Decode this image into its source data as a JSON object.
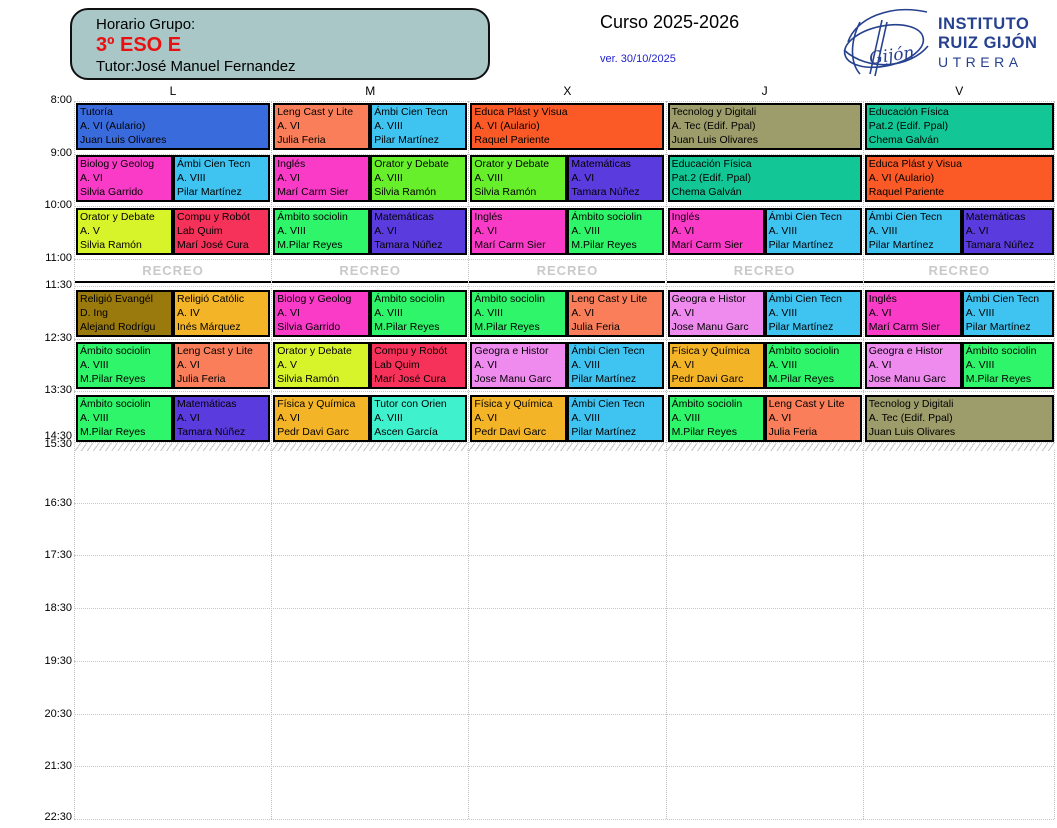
{
  "header": {
    "group_label": "Horario Grupo:",
    "group_name": "3º ESO E",
    "tutor": "Tutor:José Manuel Fernandez",
    "course": "Curso 2025-2026",
    "version": "ver. 30/10/2025",
    "logo": {
      "line1": "INSTITUTO",
      "line2": "RUIZ GIJÓN",
      "line3": "UTRERA",
      "script_word": "Gijón"
    },
    "colors": {
      "box_bg": "#A9C7C7",
      "group_red": "#E81010",
      "version_blue": "#2222CC",
      "logo_navy": "#26418F",
      "recreo_gray": "#C9C9C9"
    }
  },
  "grid": {
    "days": [
      {
        "label": "L"
      },
      {
        "label": "M"
      },
      {
        "label": "X"
      },
      {
        "label": "J"
      },
      {
        "label": "V"
      }
    ],
    "times": [
      {
        "label": "8:00"
      },
      {
        "label": "9:00"
      },
      {
        "label": "10:00"
      },
      {
        "label": "11:00"
      },
      {
        "label": "11:30"
      },
      {
        "label": "12:30"
      },
      {
        "label": "13:30"
      },
      {
        "label": "14:30"
      },
      {
        "label": "15:30"
      },
      {
        "label": "16:30"
      },
      {
        "label": "17:30"
      },
      {
        "label": "18:30"
      },
      {
        "label": "19:30"
      },
      {
        "label": "20:30"
      },
      {
        "label": "21:30"
      },
      {
        "label": "22:30"
      }
    ],
    "recreo_label": "RECREO",
    "rows": [
      {
        "time": "8:00",
        "cells": [
          {
            "day": 0,
            "pos": "full",
            "subject": "Tutoría",
            "room": "A. VI (Aulario)",
            "teacher": "Juan Luis Olivares",
            "color": "#3A6BDC"
          },
          {
            "day": 1,
            "pos": "left",
            "subject": "Leng Cast y Lite",
            "room": "A. VI",
            "teacher": "Julia Feria",
            "color": "#F97E59"
          },
          {
            "day": 1,
            "pos": "right",
            "subject": "Ámbi Cien Tecn",
            "room": "A. VIII",
            "teacher": "Pilar Martínez",
            "color": "#3FC4F2"
          },
          {
            "day": 2,
            "pos": "full",
            "subject": "Educa Plást y Visua",
            "room": "A. VI (Aulario)",
            "teacher": "Raquel Pariente",
            "color": "#FB5A26"
          },
          {
            "day": 3,
            "pos": "full",
            "subject": "Tecnolog y Digitali",
            "room": "A. Tec (Edif. Ppal)",
            "teacher": "Juan Luis Olivares",
            "color": "#9D9D6B"
          },
          {
            "day": 4,
            "pos": "full",
            "subject": "Educación Física",
            "room": "Pat.2 (Edif. Ppal)",
            "teacher": "Chema Galván",
            "color": "#12C795"
          }
        ]
      },
      {
        "time": "9:00",
        "cells": [
          {
            "day": 0,
            "pos": "left",
            "subject": "Biolog y Geolog",
            "room": "A. VI",
            "teacher": "Silvia Garrido",
            "color": "#FA3BC8"
          },
          {
            "day": 0,
            "pos": "right",
            "subject": "Ámbi Cien Tecn",
            "room": "A. VIII",
            "teacher": "Pilar Martínez",
            "color": "#3FC4F2"
          },
          {
            "day": 1,
            "pos": "left",
            "subject": "Inglés",
            "room": "A. VI",
            "teacher": "Marí Carm Sier",
            "color": "#FA3BC8"
          },
          {
            "day": 1,
            "pos": "right",
            "subject": "Orator y Debate",
            "room": "A. VIII",
            "teacher": "Silvia Ramón",
            "color": "#67EF2C"
          },
          {
            "day": 2,
            "pos": "left",
            "subject": "Orator y Debate",
            "room": "A. VIII",
            "teacher": "Silvia Ramón",
            "color": "#67EF2C"
          },
          {
            "day": 2,
            "pos": "right",
            "subject": "Matemáticas",
            "room": "A. VI",
            "teacher": "Tamara Núñez",
            "color": "#5A3BDE"
          },
          {
            "day": 3,
            "pos": "full",
            "subject": "Educación Física",
            "room": "Pat.2 (Edif. Ppal)",
            "teacher": "Chema Galván",
            "color": "#12C795"
          },
          {
            "day": 4,
            "pos": "full",
            "subject": "Educa Plást y Visua",
            "room": "A. VI (Aulario)",
            "teacher": "Raquel Pariente",
            "color": "#FB5A26"
          }
        ]
      },
      {
        "time": "10:00",
        "cells": [
          {
            "day": 0,
            "pos": "left",
            "subject": "Orator y Debate",
            "room": "A. V",
            "teacher": "Silvia Ramón",
            "color": "#D7F42B"
          },
          {
            "day": 0,
            "pos": "right",
            "subject": "Compu y Robót",
            "room": "Lab Quim",
            "teacher": "Marí José Cura",
            "color": "#F6325A"
          },
          {
            "day": 1,
            "pos": "left",
            "subject": "Ámbito sociolin",
            "room": "A. VIII",
            "teacher": "M.Pilar Reyes",
            "color": "#2EF569"
          },
          {
            "day": 1,
            "pos": "right",
            "subject": "Matemáticas",
            "room": "A. VI",
            "teacher": "Tamara Núñez",
            "color": "#5A3BDE"
          },
          {
            "day": 2,
            "pos": "left",
            "subject": "Inglés",
            "room": "A. VI",
            "teacher": "Marí Carm Sier",
            "color": "#FA3BC8"
          },
          {
            "day": 2,
            "pos": "right",
            "subject": "Ámbito sociolin",
            "room": "A. VIII",
            "teacher": "M.Pilar Reyes",
            "color": "#2EF569"
          },
          {
            "day": 3,
            "pos": "left",
            "subject": "Inglés",
            "room": "A. VI",
            "teacher": "Marí Carm Sier",
            "color": "#FA3BC8"
          },
          {
            "day": 3,
            "pos": "right",
            "subject": "Ámbi Cien Tecn",
            "room": "A. VIII",
            "teacher": "Pilar Martínez",
            "color": "#3FC4F2"
          },
          {
            "day": 4,
            "pos": "left",
            "subject": "Ámbi Cien Tecn",
            "room": "A. VIII",
            "teacher": "Pilar Martínez",
            "color": "#3FC4F2"
          },
          {
            "day": 4,
            "pos": "right",
            "subject": "Matemáticas",
            "room": "A. VI",
            "teacher": "Tamara Núñez",
            "color": "#5A3BDE"
          }
        ]
      },
      {
        "time": "11:30",
        "cells": [
          {
            "day": 0,
            "pos": "left",
            "subject": "Religió Evangél",
            "room": "D. Ing",
            "teacher": "Alejand Rodrígu",
            "color": "#9A7A0C"
          },
          {
            "day": 0,
            "pos": "right",
            "subject": "Religió Católic",
            "room": "A. IV",
            "teacher": "Inés Márquez",
            "color": "#F4B428"
          },
          {
            "day": 1,
            "pos": "left",
            "subject": "Biolog y Geolog",
            "room": "A. VI",
            "teacher": "Silvia Garrido",
            "color": "#FA3BC8"
          },
          {
            "day": 1,
            "pos": "right",
            "subject": "Ámbito sociolin",
            "room": "A. VIII",
            "teacher": "M.Pilar Reyes",
            "color": "#2EF569"
          },
          {
            "day": 2,
            "pos": "left",
            "subject": "Ámbito sociolin",
            "room": "A. VIII",
            "teacher": "M.Pilar Reyes",
            "color": "#2EF569"
          },
          {
            "day": 2,
            "pos": "right",
            "subject": "Leng Cast y Lite",
            "room": "A. VI",
            "teacher": "Julia Feria",
            "color": "#F97E59"
          },
          {
            "day": 3,
            "pos": "left",
            "subject": "Geogra e Histor",
            "room": "A. VI",
            "teacher": "Jose Manu Garc",
            "color": "#EF8BEF"
          },
          {
            "day": 3,
            "pos": "right",
            "subject": "Ámbi Cien Tecn",
            "room": "A. VIII",
            "teacher": "Pilar Martínez",
            "color": "#3FC4F2"
          },
          {
            "day": 4,
            "pos": "left",
            "subject": "Inglés",
            "room": "A. VI",
            "teacher": "Marí Carm Sier",
            "color": "#FA3BC8"
          },
          {
            "day": 4,
            "pos": "right",
            "subject": "Ámbi Cien Tecn",
            "room": "A. VIII",
            "teacher": "Pilar Martínez",
            "color": "#3FC4F2"
          }
        ]
      },
      {
        "time": "12:30",
        "cells": [
          {
            "day": 0,
            "pos": "left",
            "subject": "Ámbito sociolin",
            "room": "A. VIII",
            "teacher": "M.Pilar Reyes",
            "color": "#2EF569"
          },
          {
            "day": 0,
            "pos": "right",
            "subject": "Leng Cast y Lite",
            "room": "A. VI",
            "teacher": "Julia Feria",
            "color": "#F97E59"
          },
          {
            "day": 1,
            "pos": "left",
            "subject": "Orator y Debate",
            "room": "A. V",
            "teacher": "Silvia Ramón",
            "color": "#D7F42B"
          },
          {
            "day": 1,
            "pos": "right",
            "subject": "Compu y Robót",
            "room": "Lab Quim",
            "teacher": "Marí José Cura",
            "color": "#F6325A"
          },
          {
            "day": 2,
            "pos": "left",
            "subject": "Geogra e Histor",
            "room": "A. VI",
            "teacher": "Jose Manu Garc",
            "color": "#EF8BEF"
          },
          {
            "day": 2,
            "pos": "right",
            "subject": "Ámbi Cien Tecn",
            "room": "A. VIII",
            "teacher": "Pilar Martínez",
            "color": "#3FC4F2"
          },
          {
            "day": 3,
            "pos": "left",
            "subject": "Física y Química",
            "room": "A. VI",
            "teacher": "Pedr Davi Garc",
            "color": "#F4B428"
          },
          {
            "day": 3,
            "pos": "right",
            "subject": "Ámbito sociolin",
            "room": "A. VIII",
            "teacher": "M.Pilar Reyes",
            "color": "#2EF569"
          },
          {
            "day": 4,
            "pos": "left",
            "subject": "Geogra e Histor",
            "room": "A. VI",
            "teacher": "Jose Manu Garc",
            "color": "#EF8BEF"
          },
          {
            "day": 4,
            "pos": "right",
            "subject": "Ámbito sociolin",
            "room": "A. VIII",
            "teacher": "M.Pilar Reyes",
            "color": "#2EF569"
          }
        ]
      },
      {
        "time": "13:30",
        "cells": [
          {
            "day": 0,
            "pos": "left",
            "subject": "Ámbito sociolin",
            "room": "A. VIII",
            "teacher": "M.Pilar Reyes",
            "color": "#2EF569"
          },
          {
            "day": 0,
            "pos": "right",
            "subject": "Matemáticas",
            "room": "A. VI",
            "teacher": "Tamara Núñez",
            "color": "#5A3BDE"
          },
          {
            "day": 1,
            "pos": "left",
            "subject": "Física y Química",
            "room": "A. VI",
            "teacher": "Pedr Davi Garc",
            "color": "#F4B428"
          },
          {
            "day": 1,
            "pos": "right",
            "subject": "Tutor con Orien",
            "room": "A. VIII",
            "teacher": "Ascen García",
            "color": "#40F1CE"
          },
          {
            "day": 2,
            "pos": "left",
            "subject": "Física y Química",
            "room": "A. VI",
            "teacher": "Pedr Davi Garc",
            "color": "#F4B428"
          },
          {
            "day": 2,
            "pos": "right",
            "subject": "Ámbi Cien Tecn",
            "room": "A. VIII",
            "teacher": "Pilar Martínez",
            "color": "#3FC4F2"
          },
          {
            "day": 3,
            "pos": "left",
            "subject": "Ámbito sociolin",
            "room": "A. VIII",
            "teacher": "M.Pilar Reyes",
            "color": "#2EF569"
          },
          {
            "day": 3,
            "pos": "right",
            "subject": "Leng Cast y Lite",
            "room": "A. VI",
            "teacher": "Julia Feria",
            "color": "#F97E59"
          },
          {
            "day": 4,
            "pos": "full",
            "subject": "Tecnolog y Digitali",
            "room": "A. Tec (Edif. Ppal)",
            "teacher": "Juan Luis Olivares",
            "color": "#9D9D6B"
          }
        ]
      }
    ]
  }
}
